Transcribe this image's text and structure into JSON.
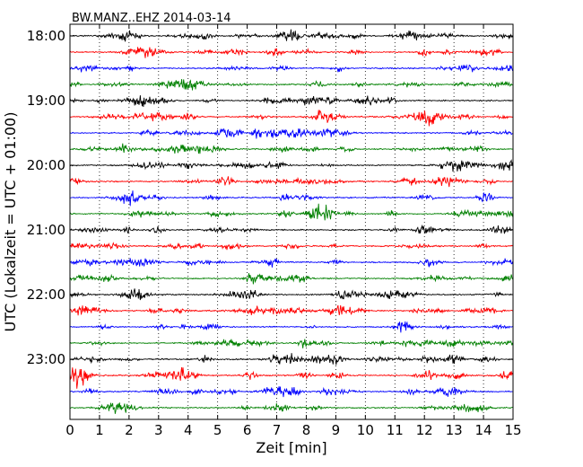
{
  "chart_data": {
    "type": "line",
    "title": "BW.MANZ..EHZ 2014-03-14",
    "xlabel": "Zeit  [min]",
    "ylabel": "UTC (Lokalzeit = UTC + 01:00)",
    "xlim": [
      0,
      15
    ],
    "xticks": [
      "0",
      "1",
      "2",
      "3",
      "4",
      "5",
      "6",
      "7",
      "8",
      "9",
      "10",
      "11",
      "12",
      "13",
      "14",
      "15"
    ],
    "ytick_labels": [
      "18:00",
      "19:00",
      "20:00",
      "21:00",
      "22:00",
      "23:00"
    ],
    "grid": "vertical dotted at each minute",
    "trace_colors": [
      "#000000",
      "#ff0000",
      "#0000ff",
      "#008000"
    ],
    "traces_per_hour": 4,
    "trace_start_times": [
      "18:00",
      "18:15",
      "18:30",
      "18:45",
      "19:00",
      "19:15",
      "19:30",
      "19:45",
      "20:00",
      "20:15",
      "20:30",
      "20:45",
      "21:00",
      "21:15",
      "21:30",
      "21:45",
      "22:00",
      "22:15",
      "22:30",
      "22:45",
      "23:00",
      "23:15",
      "23:30",
      "23:45"
    ]
  }
}
